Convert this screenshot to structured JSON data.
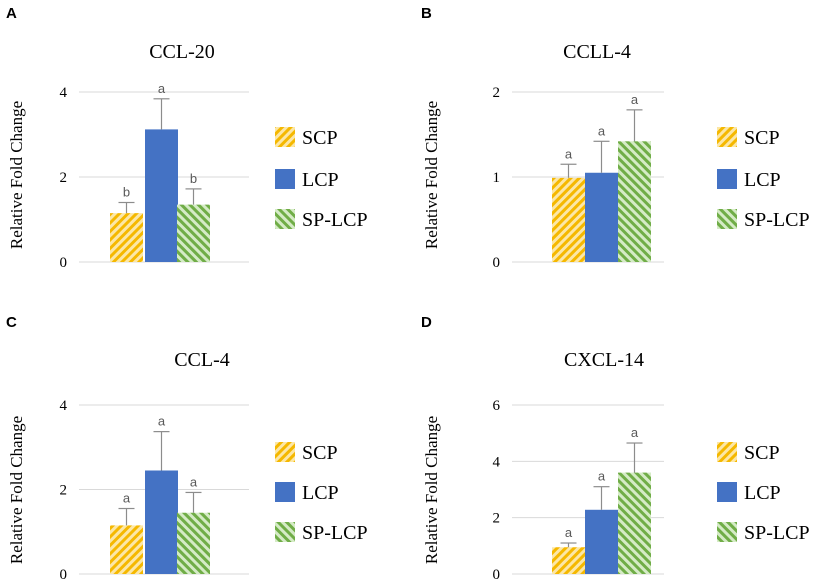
{
  "legend": [
    {
      "name": "SCP",
      "color": "#F5B800",
      "pattern": "diag-down"
    },
    {
      "name": "LCP",
      "color": "#4472C4",
      "pattern": "solid"
    },
    {
      "name": "SP-LCP",
      "color": "#70AD47",
      "pattern": "diag-up"
    }
  ],
  "chart_data": [
    {
      "panel": "A",
      "type": "bar",
      "title": "CCL-20",
      "ylabel": "Relative Fold Change",
      "xlabel": "",
      "ylim": [
        0,
        4
      ],
      "yticks": [
        0,
        2,
        4
      ],
      "categories": [
        "SCP",
        "LCP",
        "SP-LCP"
      ],
      "values": [
        1.15,
        3.12,
        1.35
      ],
      "errors": [
        0.25,
        0.72,
        0.37
      ],
      "letters": [
        "b",
        "a",
        "b"
      ],
      "grid": true,
      "legend_position": "right"
    },
    {
      "panel": "B",
      "type": "bar",
      "title": "CCLL-4",
      "ylabel": "Relative Fold Change",
      "xlabel": "",
      "ylim": [
        0,
        2
      ],
      "yticks": [
        0,
        1,
        2
      ],
      "categories": [
        "SCP",
        "LCP",
        "SP-LCP"
      ],
      "values": [
        0.99,
        1.05,
        1.42
      ],
      "errors": [
        0.16,
        0.37,
        0.37
      ],
      "letters": [
        "a",
        "a",
        "a"
      ],
      "grid": true,
      "legend_position": "right"
    },
    {
      "panel": "C",
      "type": "bar",
      "title": "CCL-4",
      "ylabel": "Relative Fold Change",
      "xlabel": "",
      "ylim": [
        0,
        4
      ],
      "yticks": [
        0,
        2,
        4
      ],
      "categories": [
        "SCP",
        "LCP",
        "SP-LCP"
      ],
      "values": [
        1.15,
        2.45,
        1.45
      ],
      "errors": [
        0.4,
        0.92,
        0.48
      ],
      "letters": [
        "a",
        "a",
        "a"
      ],
      "grid": true,
      "legend_position": "right"
    },
    {
      "panel": "D",
      "type": "bar",
      "title": "CXCL-14",
      "ylabel": "Relative Fold Change",
      "xlabel": "",
      "ylim": [
        0,
        6
      ],
      "yticks": [
        0,
        2,
        4,
        6
      ],
      "categories": [
        "SCP",
        "LCP",
        "SP-LCP"
      ],
      "values": [
        0.95,
        2.28,
        3.6
      ],
      "errors": [
        0.15,
        0.82,
        1.05
      ],
      "letters": [
        "a",
        "a",
        "a"
      ],
      "grid": true,
      "legend_position": "right"
    }
  ]
}
